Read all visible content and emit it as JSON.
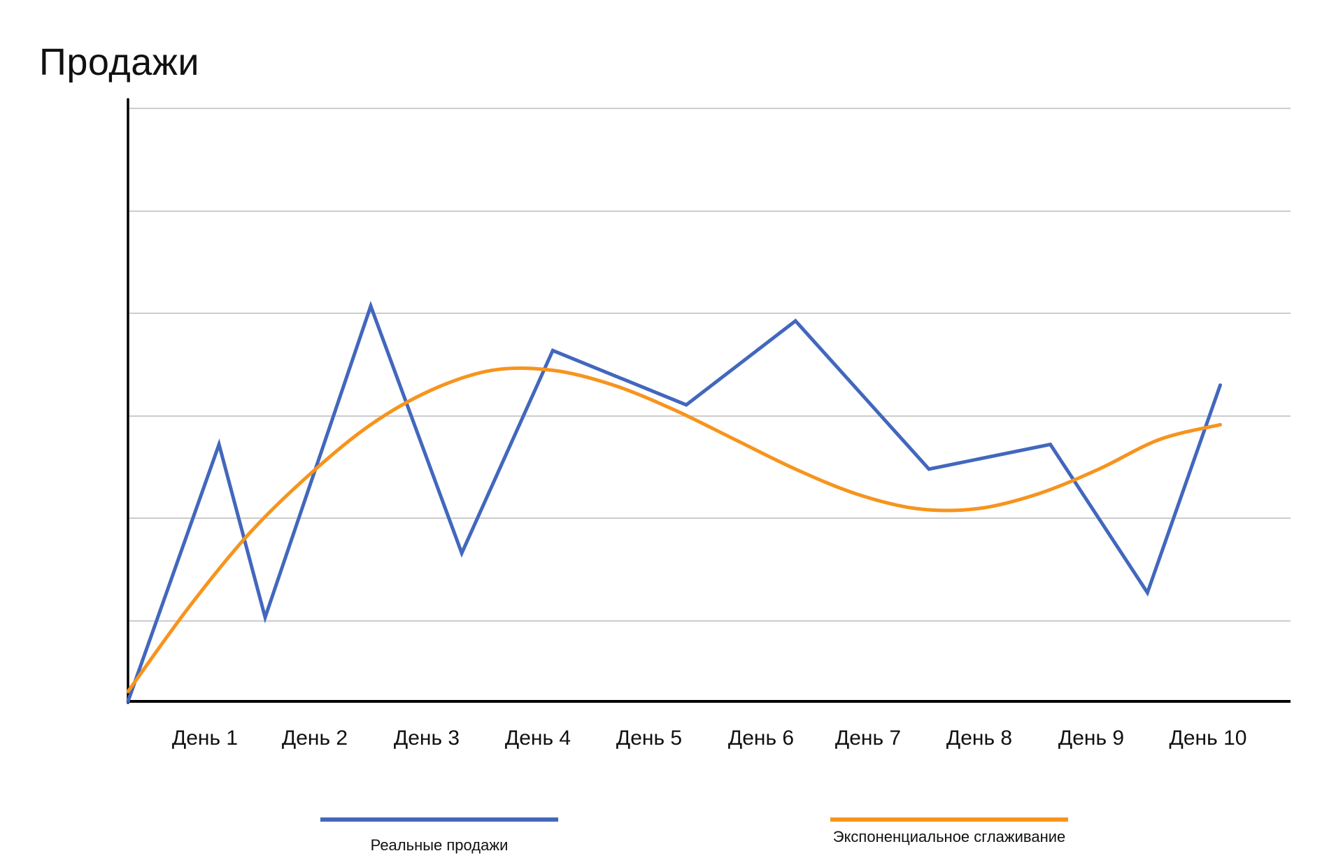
{
  "chart_data": {
    "type": "line",
    "title": "Продажи",
    "xlabel": "",
    "ylabel": "",
    "categories": [
      "День 1",
      "День 2",
      "День 3",
      "День 4",
      "День 5",
      "День 6",
      "День 7",
      "День 8",
      "День 9",
      "День 10"
    ],
    "ylim": [
      0,
      6
    ],
    "grid": true,
    "legend_position": "bottom",
    "series": [
      {
        "name": "Реальные продажи",
        "color": "#4267bd",
        "style": "polyline",
        "x": [
          0,
          0.75,
          1.13,
          2.0,
          2.75,
          3.5,
          4.6,
          5.5,
          6.6,
          7.6,
          8.4,
          9.0
        ],
        "values": [
          0,
          2.6,
          0.85,
          4.0,
          1.5,
          3.55,
          3.0,
          3.85,
          2.35,
          2.6,
          1.1,
          3.2
        ]
      },
      {
        "name": "Экспоненциальное сглаживание",
        "color": "#f7941d",
        "style": "smooth",
        "x": [
          0,
          0.5,
          1.0,
          1.5,
          2.0,
          2.5,
          3.0,
          3.5,
          4.0,
          4.5,
          5.0,
          5.5,
          6.0,
          6.5,
          7.0,
          7.5,
          8.0,
          8.5,
          9.0
        ],
        "values": [
          0.1,
          0.95,
          1.7,
          2.3,
          2.8,
          3.15,
          3.35,
          3.35,
          3.2,
          2.95,
          2.65,
          2.35,
          2.1,
          1.95,
          1.95,
          2.1,
          2.35,
          2.65,
          2.8
        ]
      }
    ]
  },
  "colors": {
    "axis": "#000000",
    "grid": "#cccccc",
    "background": "#ffffff"
  }
}
